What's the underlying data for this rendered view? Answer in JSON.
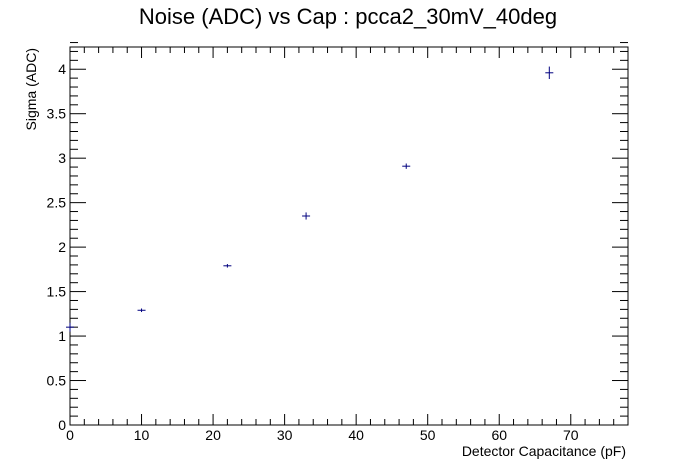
{
  "chart_data": {
    "type": "scatter",
    "title": "Noise (ADC) vs Cap : pcca2_30mV_40deg",
    "xlabel": "Detector Capacitance (pF)",
    "ylabel": "Sigma (ADC)",
    "xlim": [
      0,
      78
    ],
    "ylim": [
      0,
      4.25
    ],
    "x_major_ticks": [
      0,
      10,
      20,
      30,
      40,
      50,
      60,
      70
    ],
    "x_tick_labels": [
      "0",
      "10",
      "20",
      "30",
      "40",
      "50",
      "60",
      "70"
    ],
    "y_major_ticks": [
      0,
      0.5,
      1,
      1.5,
      2,
      2.5,
      3,
      3.5,
      4
    ],
    "y_tick_labels": [
      "0",
      "0.5",
      "1",
      "1.5",
      "2",
      "2.5",
      "3",
      "3.5",
      "4"
    ],
    "grid": false,
    "series": [
      {
        "color": "#00007f",
        "points": [
          {
            "x": 0,
            "y": 1.1,
            "yerr": 0.05
          },
          {
            "x": 10,
            "y": 1.29,
            "yerr": 0.02
          },
          {
            "x": 22,
            "y": 1.79,
            "yerr": 0.02
          },
          {
            "x": 33,
            "y": 2.35,
            "yerr": 0.04
          },
          {
            "x": 47,
            "y": 2.91,
            "yerr": 0.03
          },
          {
            "x": 67,
            "y": 3.96,
            "yerr": 0.07
          }
        ]
      }
    ]
  }
}
